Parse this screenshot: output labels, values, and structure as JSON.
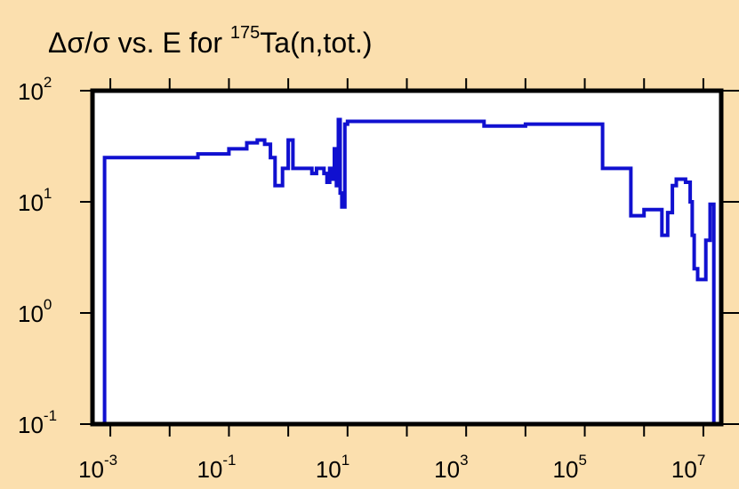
{
  "chart_data": {
    "type": "line",
    "title_prefix": "Δσ/σ vs. E for ",
    "title_superscript": "175",
    "title_suffix": "Ta(n,tot.)",
    "xscale": "log",
    "yscale": "log",
    "xlim": [
      0.0005,
      20000000
    ],
    "ylim": [
      0.1,
      100
    ],
    "x_ticks": [
      {
        "base": "10",
        "exp": "-3"
      },
      {
        "base": "10",
        "exp": "-1"
      },
      {
        "base": "10",
        "exp": "1"
      },
      {
        "base": "10",
        "exp": "3"
      },
      {
        "base": "10",
        "exp": "5"
      },
      {
        "base": "10",
        "exp": "7"
      }
    ],
    "y_ticks": [
      {
        "base": "10",
        "exp": "-1"
      },
      {
        "base": "10",
        "exp": "0"
      },
      {
        "base": "10",
        "exp": "1"
      },
      {
        "base": "10",
        "exp": "2"
      }
    ],
    "series": [
      {
        "color": "#1010d0",
        "step": true,
        "points": [
          [
            0.0008,
            0.1
          ],
          [
            0.0008,
            25
          ],
          [
            0.01,
            25
          ],
          [
            0.03,
            25
          ],
          [
            0.03,
            27
          ],
          [
            0.1,
            30
          ],
          [
            0.2,
            34
          ],
          [
            0.3,
            36
          ],
          [
            0.4,
            33
          ],
          [
            0.5,
            25
          ],
          [
            0.6,
            14
          ],
          [
            0.8,
            14
          ],
          [
            0.8,
            20
          ],
          [
            1.0,
            36
          ],
          [
            1.2,
            36
          ],
          [
            1.2,
            20
          ],
          [
            2.5,
            20
          ],
          [
            2.5,
            18
          ],
          [
            3.0,
            20
          ],
          [
            4.0,
            18
          ],
          [
            4.5,
            15
          ],
          [
            5.0,
            20
          ],
          [
            5.5,
            16
          ],
          [
            6.0,
            30
          ],
          [
            6.5,
            14
          ],
          [
            7.0,
            55
          ],
          [
            7.5,
            12
          ],
          [
            8.0,
            9
          ],
          [
            8.5,
            9
          ],
          [
            9.0,
            50
          ],
          [
            10,
            53
          ],
          [
            300,
            53
          ],
          [
            2000,
            53
          ],
          [
            2000,
            48
          ],
          [
            10000,
            48
          ],
          [
            10000,
            50
          ],
          [
            200000,
            50
          ],
          [
            200000,
            20
          ],
          [
            600000,
            20
          ],
          [
            600000,
            7.5
          ],
          [
            1000000,
            7.5
          ],
          [
            1000000,
            8.5
          ],
          [
            2000000,
            8.5
          ],
          [
            2000000,
            5.0
          ],
          [
            2500000,
            5.0
          ],
          [
            2500000,
            8.0
          ],
          [
            3000000,
            14
          ],
          [
            3500000,
            16
          ],
          [
            5000000,
            15
          ],
          [
            6000000,
            10
          ],
          [
            6500000,
            5.0
          ],
          [
            7000000,
            2.5
          ],
          [
            8000000,
            2.0
          ],
          [
            10000000,
            2.0
          ],
          [
            11000000,
            4.5
          ],
          [
            12000000,
            4.5
          ],
          [
            13000000,
            9.5
          ],
          [
            15000000,
            9.5
          ],
          [
            15000000,
            0.1
          ]
        ]
      }
    ]
  }
}
